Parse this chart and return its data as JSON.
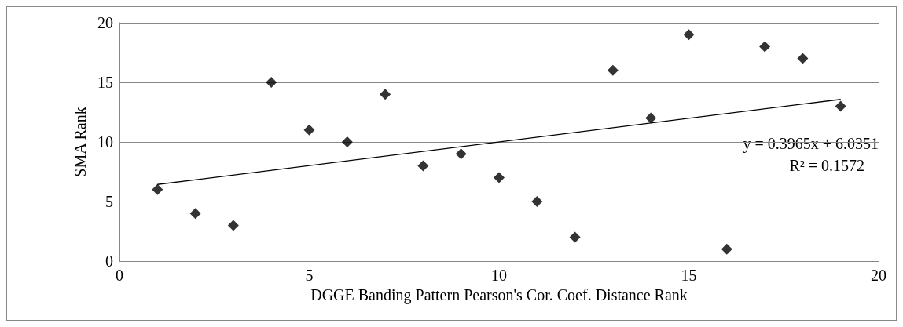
{
  "chart_data": {
    "type": "scatter",
    "xlabel": "DGGE Banding Pattern Pearson's Cor. Coef. Distance Rank",
    "ylabel": "SMA Rank",
    "x": [
      1,
      2,
      3,
      4,
      5,
      6,
      7,
      8,
      9,
      10,
      11,
      12,
      13,
      14,
      15,
      16,
      17,
      18,
      19
    ],
    "series": [
      {
        "color": "#000000",
        "values": [
          6,
          4,
          3,
          15,
          11,
          10,
          14,
          8,
          9,
          7,
          5,
          2,
          16,
          12,
          19,
          1,
          18,
          17,
          13
        ]
      },
      {
        "type": "line",
        "marker": "none",
        "color": "#000000",
        "x": [
          1,
          19
        ],
        "values": [
          6.43,
          13.57
        ]
      }
    ],
    "xlim": [
      0,
      20
    ],
    "xticks": [
      0,
      5,
      10,
      15,
      20
    ],
    "ylim": [
      0,
      20
    ],
    "yticks": [
      0,
      5,
      10,
      15,
      20
    ],
    "grid": "y",
    "marker": "diamond",
    "line_style": "solid",
    "annotations": [
      "y = 0.3965x + 6.0351",
      "R² = 0.1572"
    ]
  }
}
